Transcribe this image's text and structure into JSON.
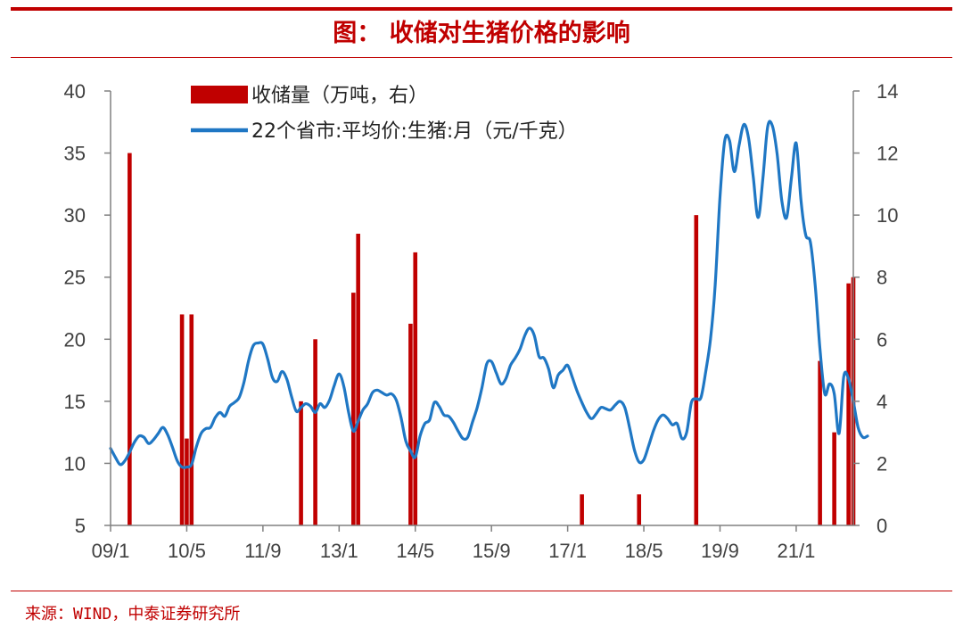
{
  "title": "图： 收储对生猪价格的影响",
  "source": "来源：WIND，中泰证券研究所",
  "colors": {
    "bar": "#c00000",
    "line": "#1f77c4",
    "accent": "#c00000",
    "axis": "#808080"
  },
  "chart_data": {
    "type": "bar+line",
    "x_tick_labels": [
      "09/1",
      "10/5",
      "11/9",
      "13/1",
      "14/5",
      "15/9",
      "17/1",
      "18/5",
      "19/9",
      "21/1"
    ],
    "x_ticks": [
      "2009-01",
      "2010-05",
      "2011-09",
      "2013-01",
      "2014-05",
      "2015-09",
      "2017-01",
      "2018-05",
      "2019-09",
      "2021-01"
    ],
    "x_range": [
      "2009-01",
      "2022-01"
    ],
    "y_left": {
      "ticks": [
        5,
        10,
        15,
        20,
        25,
        30,
        35,
        40
      ],
      "range": [
        5,
        40
      ]
    },
    "y_right": {
      "ticks": [
        0,
        2,
        4,
        6,
        8,
        10,
        12,
        14
      ],
      "range": [
        0,
        14
      ]
    },
    "legend": {
      "placement": "top-left"
    },
    "series": [
      {
        "name": "收储量（万吨，右）",
        "kind": "bar",
        "axis": "right",
        "points": [
          [
            "2009-05",
            12.0
          ],
          [
            "2010-04",
            6.8
          ],
          [
            "2010-05",
            2.8
          ],
          [
            "2010-06",
            6.8
          ],
          [
            "2012-05",
            4.0
          ],
          [
            "2012-08",
            6.0
          ],
          [
            "2013-04",
            7.5
          ],
          [
            "2013-05",
            9.4
          ],
          [
            "2014-04",
            6.5
          ],
          [
            "2014-05",
            8.8
          ],
          [
            "2017-04",
            1.0
          ],
          [
            "2018-04",
            1.0
          ],
          [
            "2019-04",
            10.0
          ],
          [
            "2021-06",
            5.3
          ],
          [
            "2021-09",
            3.0
          ],
          [
            "2021-12",
            7.8
          ],
          [
            "2022-01",
            8.0
          ]
        ]
      },
      {
        "name": "22个省市:平均价:生猪:月（元/千克）",
        "kind": "line",
        "axis": "left",
        "points": [
          [
            "2009-01",
            11.2
          ],
          [
            "2009-02",
            10.5
          ],
          [
            "2009-03",
            9.9
          ],
          [
            "2009-04",
            10.2
          ],
          [
            "2009-05",
            10.9
          ],
          [
            "2009-06",
            11.7
          ],
          [
            "2009-07",
            12.2
          ],
          [
            "2009-08",
            12.1
          ],
          [
            "2009-09",
            11.6
          ],
          [
            "2009-10",
            11.9
          ],
          [
            "2009-11",
            12.4
          ],
          [
            "2009-12",
            12.9
          ],
          [
            "2010-01",
            12.3
          ],
          [
            "2010-02",
            11.3
          ],
          [
            "2010-03",
            10.2
          ],
          [
            "2010-04",
            9.7
          ],
          [
            "2010-05",
            9.7
          ],
          [
            "2010-06",
            9.9
          ],
          [
            "2010-07",
            11.3
          ],
          [
            "2010-08",
            12.4
          ],
          [
            "2010-09",
            12.8
          ],
          [
            "2010-10",
            12.9
          ],
          [
            "2010-11",
            13.7
          ],
          [
            "2010-12",
            14.1
          ],
          [
            "2011-01",
            13.8
          ],
          [
            "2011-02",
            14.6
          ],
          [
            "2011-03",
            14.9
          ],
          [
            "2011-04",
            15.3
          ],
          [
            "2011-05",
            16.5
          ],
          [
            "2011-06",
            18.3
          ],
          [
            "2011-07",
            19.5
          ],
          [
            "2011-08",
            19.7
          ],
          [
            "2011-09",
            19.6
          ],
          [
            "2011-10",
            18.4
          ],
          [
            "2011-11",
            16.9
          ],
          [
            "2011-12",
            16.6
          ],
          [
            "2012-01",
            17.4
          ],
          [
            "2012-02",
            16.8
          ],
          [
            "2012-03",
            15.4
          ],
          [
            "2012-04",
            14.2
          ],
          [
            "2012-05",
            14.5
          ],
          [
            "2012-06",
            14.8
          ],
          [
            "2012-07",
            14.6
          ],
          [
            "2012-08",
            14.1
          ],
          [
            "2012-09",
            14.8
          ],
          [
            "2012-10",
            14.5
          ],
          [
            "2012-11",
            15.1
          ],
          [
            "2012-12",
            16.3
          ],
          [
            "2013-01",
            17.2
          ],
          [
            "2013-02",
            16.2
          ],
          [
            "2013-03",
            14.1
          ],
          [
            "2013-04",
            12.6
          ],
          [
            "2013-05",
            13.4
          ],
          [
            "2013-06",
            14.3
          ],
          [
            "2013-07",
            14.8
          ],
          [
            "2013-08",
            15.7
          ],
          [
            "2013-09",
            15.9
          ],
          [
            "2013-10",
            15.7
          ],
          [
            "2013-11",
            15.5
          ],
          [
            "2013-12",
            15.6
          ],
          [
            "2014-01",
            15.1
          ],
          [
            "2014-02",
            13.7
          ],
          [
            "2014-03",
            11.8
          ],
          [
            "2014-04",
            11.0
          ],
          [
            "2014-05",
            10.5
          ],
          [
            "2014-06",
            12.2
          ],
          [
            "2014-07",
            13.2
          ],
          [
            "2014-08",
            13.5
          ],
          [
            "2014-09",
            14.9
          ],
          [
            "2014-10",
            14.6
          ],
          [
            "2014-11",
            13.9
          ],
          [
            "2014-12",
            13.8
          ],
          [
            "2015-01",
            13.3
          ],
          [
            "2015-02",
            12.6
          ],
          [
            "2015-03",
            12.0
          ],
          [
            "2015-04",
            12.1
          ],
          [
            "2015-05",
            13.3
          ],
          [
            "2015-06",
            14.5
          ],
          [
            "2015-07",
            16.1
          ],
          [
            "2015-08",
            18.0
          ],
          [
            "2015-09",
            18.2
          ],
          [
            "2015-10",
            17.3
          ],
          [
            "2015-11",
            16.4
          ],
          [
            "2015-12",
            16.8
          ],
          [
            "2016-01",
            17.9
          ],
          [
            "2016-02",
            18.5
          ],
          [
            "2016-03",
            19.2
          ],
          [
            "2016-04",
            20.3
          ],
          [
            "2016-05",
            20.9
          ],
          [
            "2016-06",
            20.3
          ],
          [
            "2016-07",
            18.6
          ],
          [
            "2016-08",
            18.5
          ],
          [
            "2016-09",
            17.6
          ],
          [
            "2016-10",
            16.1
          ],
          [
            "2016-11",
            17.1
          ],
          [
            "2016-12",
            17.5
          ],
          [
            "2017-01",
            17.9
          ],
          [
            "2017-02",
            16.9
          ],
          [
            "2017-03",
            15.8
          ],
          [
            "2017-04",
            14.9
          ],
          [
            "2017-05",
            14.1
          ],
          [
            "2017-06",
            13.6
          ],
          [
            "2017-07",
            14.0
          ],
          [
            "2017-08",
            14.5
          ],
          [
            "2017-09",
            14.4
          ],
          [
            "2017-10",
            14.3
          ],
          [
            "2017-11",
            14.7
          ],
          [
            "2017-12",
            15.0
          ],
          [
            "2018-01",
            14.5
          ],
          [
            "2018-02",
            12.9
          ],
          [
            "2018-03",
            11.1
          ],
          [
            "2018-04",
            10.1
          ],
          [
            "2018-05",
            10.3
          ],
          [
            "2018-06",
            11.4
          ],
          [
            "2018-07",
            12.6
          ],
          [
            "2018-08",
            13.5
          ],
          [
            "2018-09",
            13.9
          ],
          [
            "2018-10",
            13.6
          ],
          [
            "2018-11",
            13.1
          ],
          [
            "2018-12",
            13.2
          ],
          [
            "2019-01",
            12.0
          ],
          [
            "2019-02",
            12.5
          ],
          [
            "2019-03",
            14.9
          ],
          [
            "2019-04",
            15.2
          ],
          [
            "2019-05",
            15.3
          ],
          [
            "2019-06",
            17.4
          ],
          [
            "2019-07",
            20.0
          ],
          [
            "2019-08",
            24.4
          ],
          [
            "2019-09",
            31.5
          ],
          [
            "2019-10",
            36.0
          ],
          [
            "2019-11",
            36.0
          ],
          [
            "2019-12",
            33.5
          ],
          [
            "2020-01",
            35.6
          ],
          [
            "2020-02",
            37.3
          ],
          [
            "2020-03",
            36.2
          ],
          [
            "2020-04",
            33.0
          ],
          [
            "2020-05",
            29.8
          ],
          [
            "2020-06",
            32.9
          ],
          [
            "2020-07",
            37.1
          ],
          [
            "2020-08",
            37.2
          ],
          [
            "2020-09",
            34.9
          ],
          [
            "2020-10",
            31.1
          ],
          [
            "2020-11",
            29.8
          ],
          [
            "2020-12",
            33.0
          ],
          [
            "2021-01",
            35.8
          ],
          [
            "2021-02",
            31.2
          ],
          [
            "2021-03",
            28.4
          ],
          [
            "2021-04",
            27.8
          ],
          [
            "2021-05",
            24.3
          ],
          [
            "2021-06",
            19.2
          ],
          [
            "2021-07",
            15.6
          ],
          [
            "2021-08",
            16.4
          ],
          [
            "2021-09",
            15.6
          ],
          [
            "2021-10",
            12.4
          ],
          [
            "2021-11",
            17.0
          ],
          [
            "2021-12",
            16.8
          ],
          [
            "2022-01",
            15.0
          ],
          [
            "2022-02",
            12.9
          ],
          [
            "2022-03",
            12.1
          ],
          [
            "2022-04",
            12.2
          ]
        ]
      }
    ]
  }
}
